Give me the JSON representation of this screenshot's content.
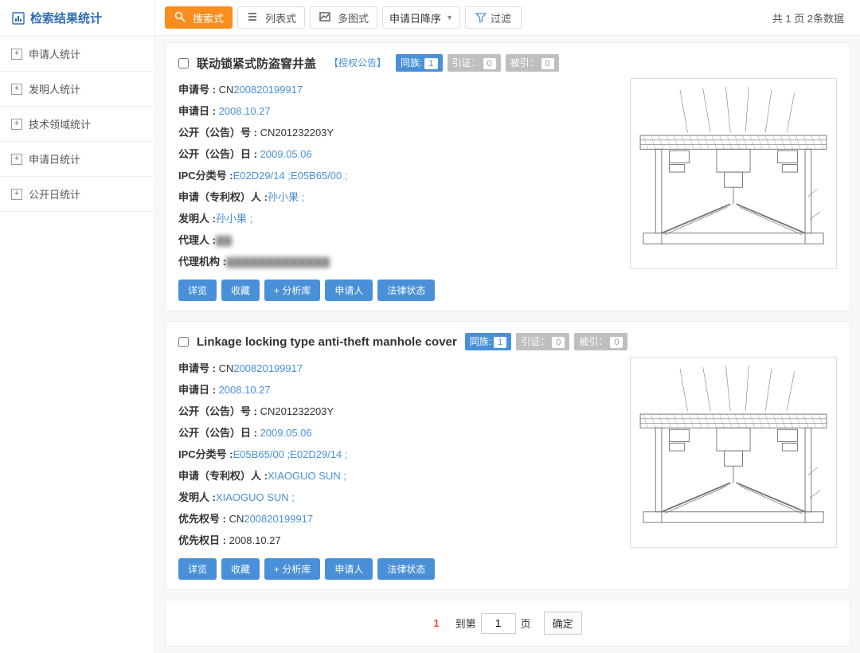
{
  "sidebar": {
    "title": "检索结果统计",
    "items": [
      "申请人统计",
      "发明人统计",
      "技术领域统计",
      "申请日统计",
      "公开日统计"
    ]
  },
  "toolbar": {
    "views": [
      {
        "label": "搜索式",
        "active": true
      },
      {
        "label": "列表式",
        "active": false
      },
      {
        "label": "多图式",
        "active": false
      }
    ],
    "sort": "申请日降序",
    "filter": "过滤",
    "count_text": "共 1 页 2条数据"
  },
  "actions": [
    "详览",
    "收藏",
    "+ 分析库",
    "申请人",
    "法律状态"
  ],
  "results": [
    {
      "title": "联动锁紧式防盗窨井盖",
      "auth_tag": "【授权公告】",
      "family": {
        "label": "同族:",
        "n": "1"
      },
      "cite": {
        "label": "引证：",
        "n": "0"
      },
      "cited": {
        "label": "被引：",
        "n": "0"
      },
      "rows": [
        {
          "lab": "申请号 : ",
          "pre": "CN",
          "link": "200820199917"
        },
        {
          "lab": "申请日 : ",
          "link": "2008.10.27"
        },
        {
          "lab": "公开（公告）号 : ",
          "text": "CN201232203Y"
        },
        {
          "lab": "公开（公告）日 : ",
          "link": "2009.05.06"
        },
        {
          "lab": "IPC分类号 :",
          "link": "E02D29/14 ;E05B65/00 ;"
        },
        {
          "lab": "申请（专利权）人 :",
          "link": "孙小果 ;"
        },
        {
          "lab": "发明人 :",
          "link": "孙小果 ;"
        },
        {
          "lab": "代理人 :",
          "blur": "▇▇"
        },
        {
          "lab": "代理机构 :",
          "blur": "▇▇▇▇▇▇▇▇▇▇▇▇▇"
        }
      ]
    },
    {
      "title": "Linkage locking type anti-theft manhole cover",
      "family": {
        "label": "同族:",
        "n": "1"
      },
      "cite": {
        "label": "引证：",
        "n": "0"
      },
      "cited": {
        "label": "被引：",
        "n": "0"
      },
      "rows": [
        {
          "lab": "申请号 : ",
          "pre": "CN",
          "link": "200820199917"
        },
        {
          "lab": "申请日 : ",
          "link": "2008.10.27"
        },
        {
          "lab": "公开（公告）号 : ",
          "text": "CN201232203Y"
        },
        {
          "lab": "公开（公告）日 : ",
          "link": "2009.05.06"
        },
        {
          "lab": "IPC分类号 :",
          "link": "E05B65/00 ;E02D29/14 ;"
        },
        {
          "lab": "申请（专利权）人 :",
          "link": "XIAOGUO SUN ;"
        },
        {
          "lab": "发明人 :",
          "link": "XIAOGUO SUN ;"
        },
        {
          "lab": "优先权号 : ",
          "pre": "CN",
          "link": "200820199917"
        },
        {
          "lab": "优先权日 : ",
          "text": "2008.10.27"
        }
      ]
    }
  ],
  "pager": {
    "current": "1",
    "goto_pre": "到第",
    "goto_post": "页",
    "input": "1",
    "ok": "确定"
  }
}
